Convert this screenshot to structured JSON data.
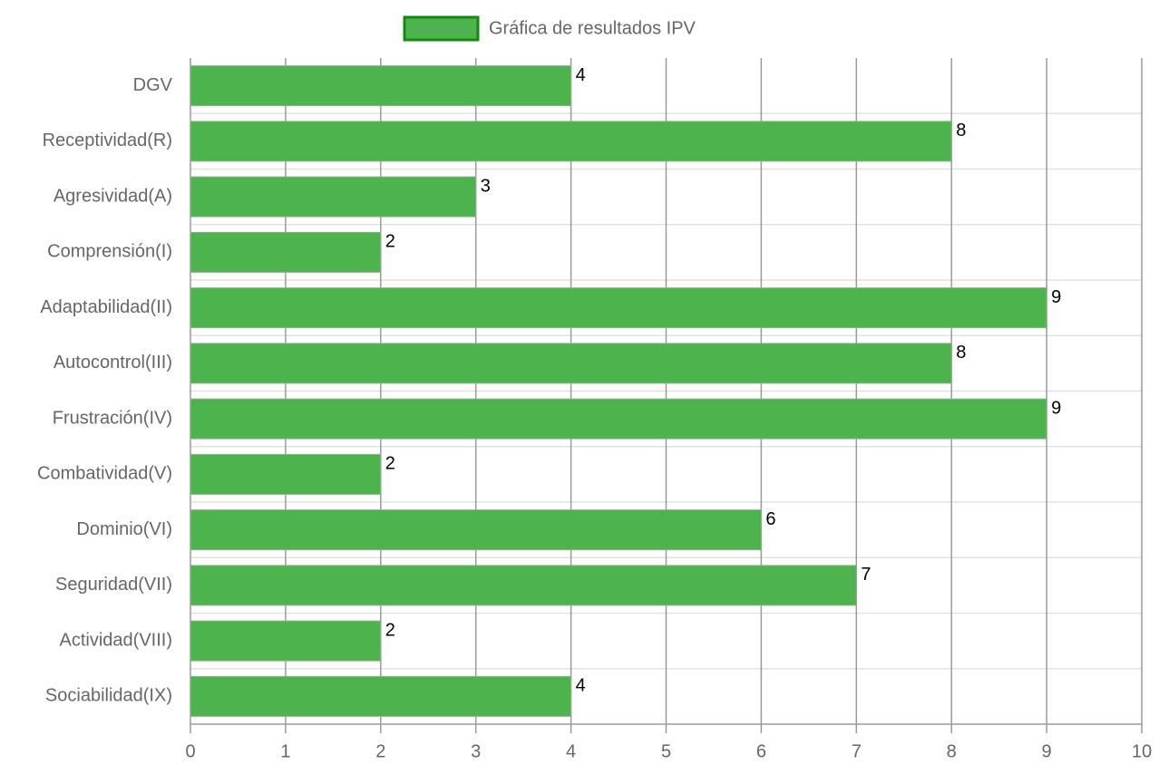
{
  "chart_data": {
    "type": "bar",
    "orientation": "horizontal",
    "categories": [
      "DGV",
      "Receptividad(R)",
      "Agresividad(A)",
      "Comprensión(I)",
      "Adaptabilidad(II)",
      "Autocontrol(III)",
      "Frustración(IV)",
      "Combatividad(V)",
      "Dominio(VI)",
      "Seguridad(VII)",
      "Actividad(VIII)",
      "Sociabilidad(IX)"
    ],
    "series": [
      {
        "name": "Gráfica de resultados IPV",
        "color": "#4db34d",
        "border_color": "#138a13",
        "values": [
          4,
          8,
          3,
          2,
          9,
          8,
          9,
          2,
          6,
          7,
          2,
          4
        ]
      }
    ],
    "xlim": [
      0,
      10
    ],
    "xticks": [
      0,
      1,
      2,
      3,
      4,
      5,
      6,
      7,
      8,
      9,
      10
    ],
    "grid": true,
    "legend": "top"
  }
}
